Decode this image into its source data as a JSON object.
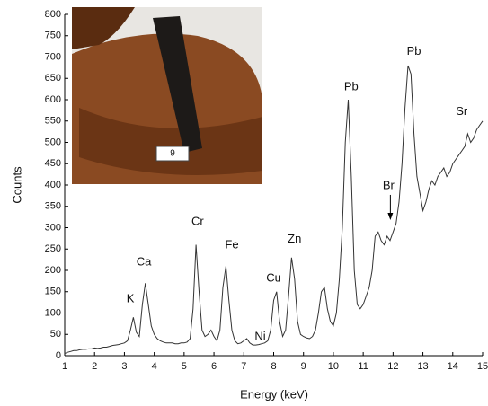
{
  "chart_data": {
    "type": "line",
    "x_label": "Energy (keV)",
    "y_label": "Counts",
    "color": "#333333",
    "xlim": [
      1,
      15
    ],
    "ylim": [
      0,
      800
    ],
    "xticks": [
      1,
      2,
      3,
      4,
      5,
      6,
      7,
      8,
      9,
      10,
      11,
      12,
      13,
      14,
      15
    ],
    "yticks": [
      0,
      50,
      100,
      150,
      200,
      250,
      300,
      350,
      400,
      450,
      500,
      550,
      600,
      650,
      700,
      750,
      800
    ],
    "x": [
      1,
      1.1,
      1.2,
      1.3,
      1.4,
      1.5,
      1.6,
      1.7,
      1.8,
      1.9,
      2,
      2.1,
      2.2,
      2.3,
      2.4,
      2.5,
      2.6,
      2.7,
      2.8,
      2.9,
      3,
      3.1,
      3.2,
      3.3,
      3.4,
      3.5,
      3.6,
      3.7,
      3.8,
      3.9,
      4,
      4.1,
      4.2,
      4.3,
      4.4,
      4.5,
      4.6,
      4.7,
      4.8,
      4.9,
      5,
      5.1,
      5.2,
      5.3,
      5.4,
      5.5,
      5.6,
      5.7,
      5.8,
      5.9,
      6,
      6.1,
      6.2,
      6.3,
      6.4,
      6.5,
      6.6,
      6.7,
      6.8,
      6.9,
      7,
      7.1,
      7.2,
      7.3,
      7.4,
      7.5,
      7.6,
      7.7,
      7.8,
      7.9,
      8,
      8.1,
      8.2,
      8.3,
      8.4,
      8.5,
      8.6,
      8.7,
      8.8,
      8.9,
      9,
      9.1,
      9.2,
      9.3,
      9.4,
      9.5,
      9.6,
      9.7,
      9.8,
      9.9,
      10,
      10.1,
      10.2,
      10.3,
      10.4,
      10.5,
      10.6,
      10.7,
      10.8,
      10.9,
      11,
      11.1,
      11.2,
      11.3,
      11.4,
      11.5,
      11.6,
      11.7,
      11.8,
      11.9,
      12,
      12.1,
      12.2,
      12.3,
      12.4,
      12.5,
      12.6,
      12.7,
      12.8,
      12.9,
      13,
      13.1,
      13.2,
      13.3,
      13.4,
      13.5,
      13.6,
      13.7,
      13.8,
      13.9,
      14,
      14.1,
      14.2,
      14.3,
      14.4,
      14.5,
      14.6,
      14.7,
      14.8,
      14.9,
      15
    ],
    "values": [
      5,
      8,
      10,
      12,
      12,
      14,
      15,
      15,
      16,
      16,
      18,
      17,
      18,
      20,
      20,
      22,
      24,
      25,
      26,
      28,
      30,
      35,
      60,
      90,
      55,
      45,
      120,
      170,
      120,
      70,
      50,
      40,
      35,
      32,
      30,
      30,
      30,
      28,
      28,
      30,
      30,
      32,
      40,
      110,
      260,
      150,
      60,
      45,
      50,
      60,
      45,
      35,
      60,
      160,
      210,
      130,
      60,
      35,
      28,
      30,
      35,
      40,
      30,
      25,
      25,
      26,
      28,
      30,
      35,
      60,
      130,
      150,
      80,
      45,
      60,
      140,
      230,
      180,
      80,
      50,
      45,
      42,
      40,
      45,
      60,
      100,
      150,
      160,
      110,
      80,
      70,
      100,
      180,
      300,
      500,
      600,
      420,
      200,
      120,
      110,
      120,
      140,
      160,
      200,
      280,
      290,
      270,
      260,
      280,
      270,
      290,
      310,
      360,
      450,
      580,
      680,
      660,
      520,
      420,
      380,
      340,
      360,
      390,
      410,
      400,
      420,
      430,
      440,
      420,
      430,
      450,
      460,
      470,
      480,
      490,
      520,
      500,
      510,
      530,
      540,
      550
    ],
    "annotations": [
      {
        "text": "K",
        "x": 3.2,
        "y": 133
      },
      {
        "text": "Ca",
        "x": 3.65,
        "y": 219
      },
      {
        "text": "Cr",
        "x": 5.45,
        "y": 314
      },
      {
        "text": "Fe",
        "x": 6.6,
        "y": 259
      },
      {
        "text": "Ni",
        "x": 7.55,
        "y": 44
      },
      {
        "text": "Cu",
        "x": 8.0,
        "y": 181
      },
      {
        "text": "Zn",
        "x": 8.7,
        "y": 272
      },
      {
        "text": "Pb",
        "x": 10.6,
        "y": 629
      },
      {
        "text": "Br",
        "x": 11.85,
        "y": 398
      },
      {
        "text": "Pb",
        "x": 12.7,
        "y": 712
      },
      {
        "text": "Sr",
        "x": 14.3,
        "y": 571
      }
    ],
    "inset_label": "9"
  }
}
